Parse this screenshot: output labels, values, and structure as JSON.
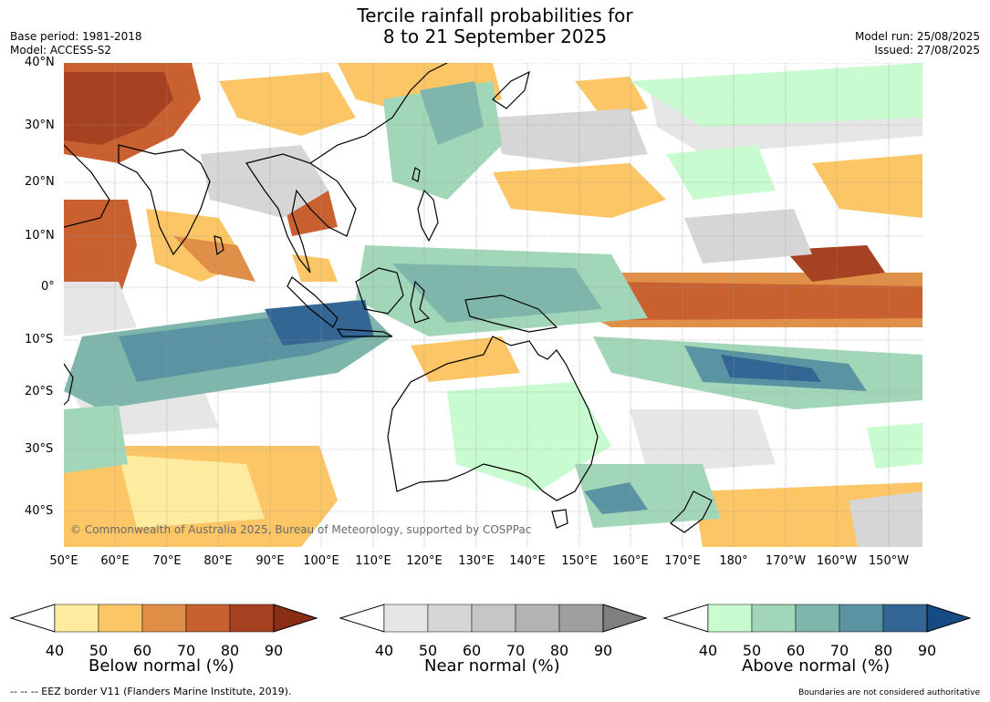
{
  "title": {
    "line1": "Tercile rainfall probabilities for",
    "line2": "8 to 21 September 2025"
  },
  "meta_left": {
    "base_period": "Base period: 1981-2018",
    "model": "Model: ACCESS-S2"
  },
  "meta_right": {
    "model_run": "Model run: 25/08/2025",
    "issued": "Issued: 27/08/2025"
  },
  "map": {
    "lat_labels": [
      "40°N",
      "30°N",
      "20°N",
      "10°N",
      "0°",
      "10°S",
      "20°S",
      "30°S",
      "40°S"
    ],
    "lon_labels": [
      "50°E",
      "60°E",
      "70°E",
      "80°E",
      "90°E",
      "100°E",
      "110°E",
      "120°E",
      "130°E",
      "140°E",
      "150°E",
      "160°E",
      "170°E",
      "180°",
      "170°W",
      "160°W",
      "150°W"
    ],
    "copyright": "© Commonwealth of Australia 2025, Bureau of Meteorology, supported by COSPPac",
    "ocean_color": "#ffffff"
  },
  "colorbars": {
    "tick_labels": [
      "40",
      "50",
      "60",
      "70",
      "80",
      "90"
    ],
    "below": {
      "title": "Below normal (%)",
      "colors": [
        "#fdeca0",
        "#fcc565",
        "#df8f48",
        "#c8602f",
        "#a64222",
        "#8b2c14"
      ]
    },
    "near": {
      "title": "Near normal (%)",
      "colors": [
        "#e6e6e6",
        "#d6d6d6",
        "#c6c6c6",
        "#b3b3b3",
        "#9f9f9f",
        "#7f7f7f"
      ]
    },
    "above": {
      "title": "Above normal (%)",
      "colors": [
        "#c8fcd0",
        "#a2d6b8",
        "#7fb6ab",
        "#5a93a2",
        "#336595",
        "#164b84"
      ]
    }
  },
  "footer": {
    "left": "--  --  -- EEZ border V11 (Flanders Marine Institute, 2019).",
    "right": "Boundaries are not considered authoritative"
  }
}
